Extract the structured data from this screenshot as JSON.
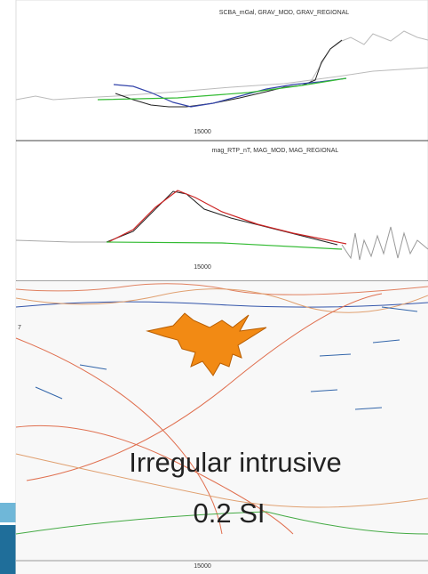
{
  "panels": [
    {
      "title": "SCBA_mGal, GRAV_MOD, GRAV_REGIONAL",
      "tick_label": "15000"
    },
    {
      "title": "mag_RTP_nT, MAG_MOD, MAG_REGIONAL",
      "tick_label": "15000"
    },
    {
      "tick_label": "15000",
      "side_label": "7"
    }
  ],
  "caption": {
    "line1": "Irregular intrusive",
    "line2": "0.2 SI"
  }
}
